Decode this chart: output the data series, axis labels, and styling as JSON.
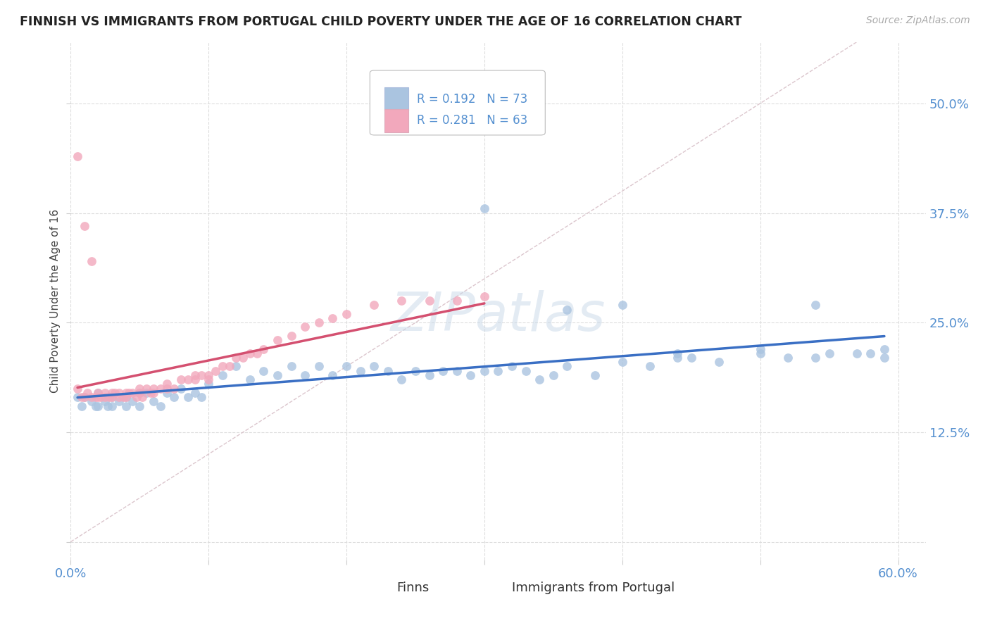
{
  "title": "FINNISH VS IMMIGRANTS FROM PORTUGAL CHILD POVERTY UNDER THE AGE OF 16 CORRELATION CHART",
  "source": "Source: ZipAtlas.com",
  "ylabel": "Child Poverty Under the Age of 16",
  "xlim": [
    0.0,
    0.62
  ],
  "ylim": [
    -0.02,
    0.57
  ],
  "x_ticks": [
    0.0,
    0.1,
    0.2,
    0.3,
    0.4,
    0.5,
    0.6
  ],
  "x_tick_labels": [
    "0.0%",
    "",
    "",
    "",
    "",
    "",
    "60.0%"
  ],
  "y_ticks": [
    0.0,
    0.125,
    0.25,
    0.375,
    0.5
  ],
  "y_tick_labels_right": [
    "",
    "12.5%",
    "25.0%",
    "37.5%",
    "50.0%"
  ],
  "color_finns": "#aac4e0",
  "color_portugal": "#f2a8bc",
  "color_finns_line": "#3a6fc4",
  "color_portugal_line": "#d45070",
  "color_diagonal": "#d8c0c8",
  "watermark": "ZIPatlas",
  "finns_x": [
    0.005,
    0.008,
    0.01,
    0.015,
    0.018,
    0.02,
    0.02,
    0.025,
    0.027,
    0.03,
    0.03,
    0.035,
    0.04,
    0.04,
    0.045,
    0.05,
    0.05,
    0.055,
    0.06,
    0.065,
    0.07,
    0.075,
    0.08,
    0.085,
    0.09,
    0.095,
    0.1,
    0.11,
    0.12,
    0.13,
    0.14,
    0.15,
    0.16,
    0.17,
    0.18,
    0.19,
    0.2,
    0.21,
    0.22,
    0.23,
    0.24,
    0.25,
    0.26,
    0.27,
    0.28,
    0.29,
    0.3,
    0.31,
    0.32,
    0.33,
    0.34,
    0.35,
    0.36,
    0.38,
    0.4,
    0.42,
    0.44,
    0.45,
    0.47,
    0.5,
    0.52,
    0.54,
    0.55,
    0.57,
    0.58,
    0.59,
    0.3,
    0.36,
    0.4,
    0.44,
    0.5,
    0.54,
    0.59
  ],
  "finns_y": [
    0.165,
    0.155,
    0.165,
    0.16,
    0.155,
    0.17,
    0.155,
    0.16,
    0.155,
    0.165,
    0.155,
    0.16,
    0.165,
    0.155,
    0.16,
    0.17,
    0.155,
    0.17,
    0.16,
    0.155,
    0.17,
    0.165,
    0.175,
    0.165,
    0.17,
    0.165,
    0.18,
    0.19,
    0.2,
    0.185,
    0.195,
    0.19,
    0.2,
    0.19,
    0.2,
    0.19,
    0.2,
    0.195,
    0.2,
    0.195,
    0.185,
    0.195,
    0.19,
    0.195,
    0.195,
    0.19,
    0.195,
    0.195,
    0.2,
    0.195,
    0.185,
    0.19,
    0.2,
    0.19,
    0.205,
    0.2,
    0.21,
    0.21,
    0.205,
    0.215,
    0.21,
    0.21,
    0.215,
    0.215,
    0.215,
    0.21,
    0.38,
    0.265,
    0.27,
    0.215,
    0.22,
    0.27,
    0.22
  ],
  "portugal_x": [
    0.005,
    0.008,
    0.01,
    0.012,
    0.015,
    0.018,
    0.02,
    0.02,
    0.022,
    0.025,
    0.025,
    0.028,
    0.03,
    0.03,
    0.032,
    0.035,
    0.035,
    0.038,
    0.04,
    0.04,
    0.042,
    0.045,
    0.048,
    0.05,
    0.05,
    0.052,
    0.055,
    0.058,
    0.06,
    0.06,
    0.065,
    0.07,
    0.07,
    0.075,
    0.08,
    0.085,
    0.09,
    0.09,
    0.095,
    0.1,
    0.1,
    0.105,
    0.11,
    0.115,
    0.12,
    0.125,
    0.13,
    0.135,
    0.14,
    0.15,
    0.16,
    0.17,
    0.18,
    0.19,
    0.2,
    0.22,
    0.24,
    0.26,
    0.28,
    0.3,
    0.005,
    0.01,
    0.015
  ],
  "portugal_y": [
    0.175,
    0.165,
    0.165,
    0.17,
    0.165,
    0.165,
    0.17,
    0.165,
    0.165,
    0.17,
    0.165,
    0.165,
    0.17,
    0.165,
    0.17,
    0.165,
    0.17,
    0.165,
    0.17,
    0.165,
    0.17,
    0.17,
    0.165,
    0.175,
    0.17,
    0.165,
    0.175,
    0.17,
    0.175,
    0.17,
    0.175,
    0.18,
    0.175,
    0.175,
    0.185,
    0.185,
    0.19,
    0.185,
    0.19,
    0.19,
    0.185,
    0.195,
    0.2,
    0.2,
    0.21,
    0.21,
    0.215,
    0.215,
    0.22,
    0.23,
    0.235,
    0.245,
    0.25,
    0.255,
    0.26,
    0.27,
    0.275,
    0.275,
    0.275,
    0.28,
    0.44,
    0.36,
    0.32
  ]
}
